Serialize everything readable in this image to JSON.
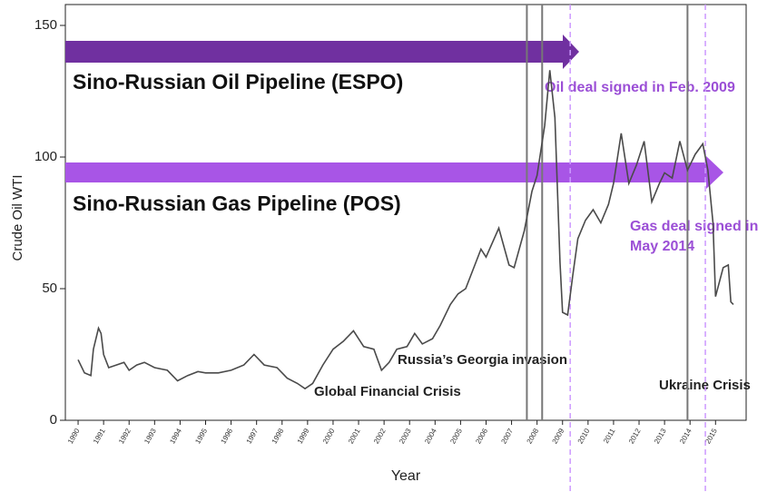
{
  "chart_data": {
    "type": "line",
    "xlabel": "Year",
    "ylabel": "Crude Oil WTI",
    "xlim": [
      1989.5,
      2016.2
    ],
    "ylim": [
      0,
      150
    ],
    "xticks": [
      1990,
      1991,
      1992,
      1993,
      1994,
      1995,
      1996,
      1997,
      1998,
      1999,
      2000,
      2001,
      2002,
      2003,
      2004,
      2005,
      2006,
      2007,
      2008,
      2009,
      2010,
      2011,
      2012,
      2013,
      2014,
      2015
    ],
    "yticks": [
      0,
      50,
      100,
      150
    ],
    "series": [
      {
        "name": "Crude Oil WTI",
        "color": "#4a4a4a",
        "x": [
          1990.0,
          1990.25,
          1990.5,
          1990.6,
          1990.8,
          1990.9,
          1991.0,
          1991.2,
          1991.5,
          1991.8,
          1992.0,
          1992.3,
          1992.6,
          1993.0,
          1993.5,
          1993.9,
          1994.3,
          1994.7,
          1995.0,
          1995.5,
          1996.0,
          1996.5,
          1996.9,
          1997.3,
          1997.8,
          1998.2,
          1998.6,
          1998.9,
          1999.2,
          1999.6,
          2000.0,
          2000.4,
          2000.8,
          2001.2,
          2001.6,
          2001.9,
          2002.2,
          2002.5,
          2002.9,
          2003.2,
          2003.5,
          2003.9,
          2004.2,
          2004.6,
          2004.9,
          2005.2,
          2005.6,
          2005.8,
          2006.0,
          2006.5,
          2006.9,
          2007.1,
          2007.5,
          2007.8,
          2008.0,
          2008.3,
          2008.5,
          2008.7,
          2008.9,
          2009.0,
          2009.2,
          2009.4,
          2009.6,
          2009.9,
          2010.2,
          2010.5,
          2010.8,
          2011.0,
          2011.3,
          2011.6,
          2011.9,
          2012.2,
          2012.5,
          2012.8,
          2013.0,
          2013.3,
          2013.6,
          2013.9,
          2014.2,
          2014.5,
          2014.7,
          2014.9,
          2015.0,
          2015.3,
          2015.5,
          2015.6,
          2015.7
        ],
        "values": [
          23,
          18,
          17,
          27,
          35,
          33,
          25,
          20,
          21,
          22,
          19,
          21,
          22,
          20,
          19,
          15,
          17,
          18.5,
          18,
          18,
          19,
          21,
          25,
          21,
          20,
          16,
          14,
          12,
          14,
          21,
          27,
          30,
          34,
          28,
          27,
          19,
          22,
          27,
          28,
          33,
          29,
          31,
          36,
          44,
          48,
          50,
          60,
          65,
          62,
          73,
          59,
          58,
          72,
          87,
          93,
          112,
          133,
          115,
          60,
          41,
          40,
          55,
          69,
          76,
          80,
          75,
          82,
          90,
          109,
          90,
          97,
          106,
          83,
          90,
          94,
          92,
          106,
          95,
          101,
          105,
          95,
          75,
          47,
          58,
          59,
          45,
          44
        ]
      }
    ],
    "vlines": [
      {
        "x": 2007.6,
        "color": "#777777",
        "style": "solid"
      },
      {
        "x": 2008.2,
        "color": "#777777",
        "style": "solid"
      },
      {
        "x": 2013.9,
        "color": "#777777",
        "style": "solid"
      },
      {
        "x": 2009.3,
        "color": "#cc99ff",
        "style": "dashed"
      },
      {
        "x": 2014.6,
        "color": "#cc99ff",
        "style": "dashed"
      }
    ],
    "annotations": {
      "oil_pipeline": "Sino-Russian Oil Pipeline (ESPO)",
      "oil_deal": "Oil deal signed in Feb. 2009",
      "gas_pipeline": "Sino-Russian Gas Pipeline (POS)",
      "gas_deal": [
        "Gas deal signed in",
        "May 2014"
      ],
      "georgia": "Russia’s Georgia invasion",
      "gfc": "Global Financial Crisis",
      "ukraine": "Ukraine Crisis"
    }
  }
}
